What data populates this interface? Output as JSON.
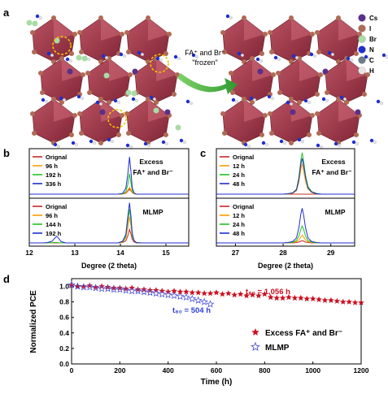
{
  "panel_a": {
    "label": "a",
    "arrow_text": [
      "FA⁺ and Br⁻",
      "\"frozen\""
    ],
    "legend": [
      {
        "name": "Cs",
        "color": "#5b2f8a"
      },
      {
        "name": "I",
        "color": "#b06a55"
      },
      {
        "name": "Br",
        "color": "#a8dca6"
      },
      {
        "name": "N",
        "color": "#1f2fd0"
      },
      {
        "name": "C",
        "color": "#6a7e8a"
      },
      {
        "name": "H",
        "color": "#e6e6e6"
      }
    ]
  },
  "panel_b": {
    "label": "b",
    "top": {
      "title": [
        "Excess",
        "FA⁺ and Br⁻"
      ],
      "legend": [
        "Orignal",
        "96 h",
        "192 h",
        "336 h"
      ]
    },
    "bottom": {
      "title": [
        "MLMP"
      ],
      "legend": [
        "Orignal",
        "96 h",
        "144 h",
        "192 h"
      ]
    },
    "xlabel": "Degree (2 theta)",
    "xticks": [
      "12",
      "13",
      "14",
      "15"
    ]
  },
  "panel_c": {
    "label": "c",
    "top": {
      "title": [
        "Excess",
        "FA⁺ and Br⁻"
      ],
      "legend": [
        "Orignal",
        "12 h",
        "24 h",
        "48 h"
      ]
    },
    "bottom": {
      "title": [
        "MLMP"
      ],
      "legend": [
        "Orignal",
        "12 h",
        "24 h",
        "48 h"
      ]
    },
    "xlabel": "Degree (2 theta)",
    "xticks": [
      "27",
      "28",
      "29"
    ]
  },
  "panel_d": {
    "label": "d",
    "ylabel": "Normalized PCE",
    "xlabel": "Time (h)",
    "annot_excess": "t₈₀ = 1,056 h",
    "annot_mlmp": "t₈₀ = 504 h",
    "legend": [
      {
        "name": "Excess FA⁺ and Br⁻",
        "symbol": "filled-star"
      },
      {
        "name": "MLMP",
        "symbol": "open-star"
      }
    ]
  },
  "colors": {
    "excess": "#cc1020",
    "mlmp": "#4f55d8",
    "series": [
      "#c62828",
      "#ff9900",
      "#22c422",
      "#1f2fd0"
    ]
  },
  "chart_data": [
    {
      "type": "line",
      "id": "b",
      "xlim": [
        12,
        15.5
      ],
      "x": [
        12,
        12.1,
        12.2,
        12.3,
        12.4,
        12.5,
        12.55,
        12.6,
        12.65,
        12.7,
        12.8,
        12.9,
        13.0,
        13.2,
        13.4,
        13.6,
        13.8,
        13.95,
        14.05,
        14.12,
        14.16,
        14.2,
        14.23,
        14.26,
        14.3,
        14.35,
        14.45,
        14.6,
        14.8,
        15.0,
        15.2,
        15.5
      ],
      "panels": [
        {
          "ylim": [
            0,
            100
          ],
          "series": [
            {
              "name": "Orignal",
              "values": [
                0,
                0,
                0,
                0,
                0,
                0,
                0,
                0,
                0,
                0,
                0,
                0,
                0,
                0,
                0,
                0,
                0,
                0,
                0.5,
                2,
                7,
                12,
                8,
                3,
                1,
                0,
                0,
                0,
                0,
                0,
                0,
                0
              ]
            },
            {
              "name": "96 h",
              "values": [
                0,
                0,
                0,
                0,
                0,
                0,
                0,
                0,
                0,
                0,
                0,
                0,
                0,
                0,
                0,
                0,
                0,
                0,
                0.5,
                3,
                9,
                16,
                10,
                4,
                1,
                0,
                0,
                0,
                0,
                0,
                0,
                0
              ]
            },
            {
              "name": "192 h",
              "values": [
                0,
                0,
                0,
                0,
                0,
                0,
                0,
                0,
                0,
                0,
                0,
                0,
                0,
                0,
                0,
                0,
                0,
                0,
                1,
                6,
                22,
                48,
                28,
                8,
                2,
                0,
                0,
                0,
                0,
                0,
                0,
                0
              ]
            },
            {
              "name": "336 h",
              "values": [
                0,
                0,
                0,
                0,
                0,
                0,
                0,
                0,
                0,
                0,
                0,
                0,
                0,
                0,
                0,
                0,
                0,
                0,
                2,
                14,
                45,
                88,
                55,
                15,
                3,
                0,
                0,
                0,
                0,
                0,
                0,
                0
              ]
            }
          ]
        },
        {
          "ylim": [
            0,
            100
          ],
          "series": [
            {
              "name": "Orignal",
              "values": [
                0,
                0,
                0,
                0,
                0,
                0,
                0,
                0,
                0,
                0,
                0,
                0,
                0,
                0,
                0,
                0,
                0,
                0,
                1,
                5,
                16,
                32,
                22,
                8,
                2,
                0,
                0,
                0,
                0,
                0,
                0,
                0
              ]
            },
            {
              "name": "96 h",
              "values": [
                0,
                0,
                0,
                0,
                0,
                0.5,
                1,
                1,
                0.5,
                0,
                0,
                0,
                0,
                0,
                0,
                0,
                0,
                0,
                2,
                11,
                35,
                62,
                42,
                15,
                4,
                1,
                0,
                0,
                0,
                0,
                0,
                0
              ]
            },
            {
              "name": "144 h",
              "values": [
                0,
                0,
                0,
                0,
                0,
                0.5,
                1,
                1,
                0.5,
                0,
                0,
                0,
                0,
                0,
                0,
                0,
                0,
                0,
                3,
                16,
                50,
                80,
                55,
                18,
                5,
                1,
                0,
                0,
                0,
                0,
                0,
                0
              ]
            },
            {
              "name": "192 h",
              "values": [
                0,
                0,
                0,
                0,
                1,
                4,
                10,
                16,
                10,
                3,
                0,
                0,
                0,
                0,
                0,
                0,
                0,
                0,
                4,
                20,
                60,
                95,
                65,
                22,
                6,
                1,
                0,
                0,
                0,
                0,
                0,
                0
              ]
            }
          ]
        }
      ]
    },
    {
      "type": "line",
      "id": "c",
      "xlim": [
        26.6,
        29.5
      ],
      "x": [
        26.6,
        27.0,
        27.4,
        27.8,
        28.0,
        28.1,
        28.2,
        28.28,
        28.33,
        28.37,
        28.4,
        28.43,
        28.47,
        28.52,
        28.6,
        28.7,
        28.8,
        29.0,
        29.3,
        29.5
      ],
      "panels": [
        {
          "ylim": [
            0,
            100
          ],
          "series": [
            {
              "name": "Orignal",
              "values": [
                0,
                0,
                0,
                0,
                0,
                0,
                0,
                0,
                0,
                0,
                0,
                0,
                0,
                0,
                0,
                0,
                0,
                0,
                0,
                0
              ]
            },
            {
              "name": "12 h",
              "values": [
                0,
                0,
                0,
                0,
                0,
                0.5,
                2,
                8,
                28,
                58,
                72,
                55,
                30,
                12,
                4,
                1,
                0,
                0,
                0,
                0
              ]
            },
            {
              "name": "24 h",
              "values": [
                0,
                0,
                0,
                0,
                0,
                1,
                3,
                12,
                40,
                80,
                98,
                78,
                45,
                18,
                6,
                2,
                0,
                0,
                0,
                0
              ]
            },
            {
              "name": "48 h",
              "values": [
                0,
                0,
                0,
                0,
                0,
                1,
                3,
                10,
                35,
                70,
                85,
                68,
                40,
                15,
                5,
                1,
                0,
                0,
                0,
                0
              ]
            }
          ]
        },
        {
          "ylim": [
            0,
            100
          ],
          "series": [
            {
              "name": "Orignal",
              "values": [
                0,
                0,
                0,
                0,
                0,
                0,
                0,
                1,
                2,
                4,
                5,
                4,
                2,
                1,
                0,
                0,
                0,
                0,
                0,
                0
              ]
            },
            {
              "name": "12 h",
              "values": [
                0,
                0,
                0,
                0,
                0,
                0,
                1,
                3,
                7,
                14,
                18,
                14,
                7,
                3,
                1,
                0,
                0,
                0,
                0,
                0
              ]
            },
            {
              "name": "24 h",
              "values": [
                0,
                0,
                0,
                0,
                0,
                0.5,
                1,
                6,
                16,
                32,
                40,
                32,
                16,
                6,
                2,
                0,
                0,
                0,
                0,
                0
              ]
            },
            {
              "name": "48 h",
              "values": [
                0,
                0,
                0,
                0,
                0,
                1,
                3,
                12,
                35,
                68,
                82,
                66,
                36,
                12,
                3,
                1,
                0,
                0,
                0,
                0
              ]
            }
          ]
        }
      ]
    },
    {
      "type": "scatter",
      "id": "d",
      "xlim": [
        0,
        1200
      ],
      "ylim": [
        0,
        1.1
      ],
      "xticks": [
        0,
        200,
        400,
        600,
        800,
        1000,
        1200
      ],
      "yticks": [
        0.0,
        0.2,
        0.4,
        0.6,
        0.8,
        1.0
      ],
      "series": [
        {
          "name": "Excess FA⁺ and Br⁻",
          "x": [
            0,
            25,
            50,
            75,
            100,
            125,
            150,
            175,
            200,
            225,
            250,
            275,
            300,
            325,
            350,
            375,
            400,
            425,
            450,
            475,
            500,
            525,
            550,
            575,
            600,
            625,
            650,
            675,
            700,
            725,
            750,
            775,
            800,
            825,
            850,
            875,
            900,
            925,
            950,
            975,
            1000,
            1025,
            1050,
            1075,
            1100,
            1125,
            1150,
            1175,
            1200
          ],
          "y": [
            1.01,
            1.0,
            1.0,
            1.01,
            0.99,
            1.0,
            0.99,
            0.98,
            0.98,
            0.97,
            0.98,
            0.96,
            0.96,
            0.95,
            0.95,
            0.94,
            0.93,
            0.94,
            0.93,
            0.93,
            0.92,
            0.92,
            0.91,
            0.91,
            0.92,
            0.9,
            0.91,
            0.89,
            0.9,
            0.88,
            0.89,
            0.88,
            0.9,
            0.86,
            0.85,
            0.85,
            0.86,
            0.85,
            0.85,
            0.84,
            0.84,
            0.83,
            0.82,
            0.82,
            0.81,
            0.8,
            0.8,
            0.79,
            0.79
          ]
        },
        {
          "name": "MLMP",
          "x": [
            0,
            25,
            50,
            75,
            100,
            125,
            150,
            175,
            200,
            225,
            250,
            275,
            300,
            325,
            350,
            375,
            400,
            425,
            450,
            475,
            500,
            525,
            550,
            575
          ],
          "y": [
            1.02,
            1.0,
            0.99,
            0.99,
            0.98,
            0.97,
            0.97,
            0.96,
            0.96,
            0.95,
            0.94,
            0.94,
            0.93,
            0.92,
            0.91,
            0.9,
            0.89,
            0.88,
            0.87,
            0.86,
            0.84,
            0.82,
            0.8,
            0.77
          ]
        }
      ]
    }
  ]
}
